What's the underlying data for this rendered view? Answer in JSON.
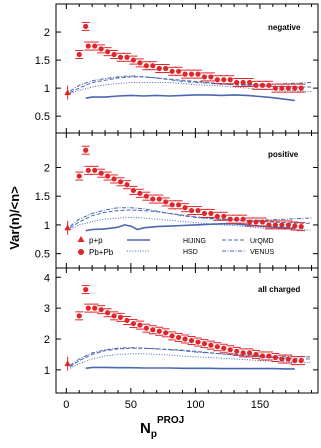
{
  "figure": {
    "ylabel": "Var(n)/<n>",
    "xlabel_main": "N",
    "xlabel_sub": "p",
    "xlabel_sup": "PROJ",
    "xticks": [
      0,
      50,
      100,
      150
    ],
    "colors": {
      "data": "#e0262a",
      "model": "#4a68b0",
      "frame": "#000000"
    }
  },
  "legend": {
    "pp": "p+p",
    "pbpb": "Pb+Pb",
    "hijing": "HIJING",
    "hsd": "HSD",
    "urqmd": "UrQMD",
    "venus": "VENUS"
  },
  "chart_data": [
    {
      "type": "scatter",
      "title": "negative",
      "xlim": [
        -8,
        195
      ],
      "ylim": [
        0.2,
        2.5
      ],
      "yticks": [
        0.5,
        1,
        1.5,
        2
      ],
      "series": [
        {
          "name": "p+p",
          "x": [
            1
          ],
          "y": [
            0.92
          ]
        },
        {
          "name": "Pb+Pb",
          "x": [
            10,
            15,
            17,
            22,
            27,
            32,
            37,
            42,
            47,
            52,
            57,
            62,
            67,
            72,
            77,
            82,
            87,
            92,
            97,
            102,
            107,
            112,
            117,
            122,
            127,
            132,
            137,
            142,
            147,
            152,
            157,
            162,
            167,
            172,
            177,
            182
          ],
          "y": [
            1.6,
            2.1,
            1.75,
            1.75,
            1.7,
            1.65,
            1.6,
            1.55,
            1.55,
            1.5,
            1.45,
            1.4,
            1.4,
            1.35,
            1.35,
            1.3,
            1.3,
            1.25,
            1.25,
            1.25,
            1.2,
            1.2,
            1.15,
            1.15,
            1.15,
            1.1,
            1.1,
            1.1,
            1.05,
            1.05,
            1.05,
            1.0,
            1.0,
            1.0,
            1.0,
            1.0
          ]
        },
        {
          "name": "HIJING",
          "x": [
            15,
            20,
            30,
            40,
            50,
            60,
            70,
            80,
            90,
            100,
            110,
            120,
            130,
            140,
            150,
            160,
            170,
            177
          ],
          "y": [
            0.82,
            0.84,
            0.84,
            0.86,
            0.87,
            0.86,
            0.87,
            0.86,
            0.87,
            0.88,
            0.88,
            0.87,
            0.88,
            0.87,
            0.85,
            0.83,
            0.8,
            0.78
          ]
        },
        {
          "name": "HSD",
          "x": [
            3,
            10,
            20,
            30,
            40,
            50,
            60,
            70,
            80,
            90,
            100,
            110,
            120,
            130,
            140,
            150,
            160,
            170,
            180,
            190
          ],
          "y": [
            0.9,
            0.96,
            1.02,
            1.06,
            1.08,
            1.1,
            1.1,
            1.1,
            1.1,
            1.08,
            1.06,
            1.05,
            1.04,
            1.02,
            1.0,
            0.98,
            0.97,
            0.96,
            0.95,
            0.94
          ]
        },
        {
          "name": "UrQMD",
          "x": [
            3,
            10,
            20,
            30,
            40,
            50,
            60,
            70,
            80,
            90,
            100,
            110,
            120,
            130,
            140,
            150,
            160,
            170,
            180,
            190
          ],
          "y": [
            0.92,
            1.0,
            1.1,
            1.14,
            1.18,
            1.2,
            1.2,
            1.18,
            1.16,
            1.14,
            1.12,
            1.1,
            1.08,
            1.06,
            1.05,
            1.04,
            1.03,
            1.03,
            1.02,
            1.02
          ]
        },
        {
          "name": "VENUS",
          "x": [
            3,
            10,
            20,
            30,
            40,
            50,
            60,
            70,
            80,
            90,
            100,
            110,
            120,
            130,
            140,
            150,
            160,
            170,
            180,
            190
          ],
          "y": [
            0.95,
            1.05,
            1.13,
            1.17,
            1.2,
            1.22,
            1.2,
            1.18,
            1.15,
            1.12,
            1.1,
            1.09,
            1.07,
            1.06,
            1.06,
            1.06,
            1.07,
            1.08,
            1.09,
            1.1
          ]
        }
      ]
    },
    {
      "type": "scatter",
      "title": "positive",
      "xlim": [
        -8,
        195
      ],
      "ylim": [
        0.25,
        2.6
      ],
      "yticks": [
        0.5,
        1,
        1.5,
        2
      ],
      "series": [
        {
          "name": "p+p",
          "x": [
            1
          ],
          "y": [
            0.95
          ]
        },
        {
          "name": "Pb+Pb",
          "x": [
            10,
            15,
            17,
            22,
            27,
            32,
            37,
            42,
            47,
            52,
            57,
            62,
            67,
            72,
            77,
            82,
            87,
            92,
            97,
            102,
            107,
            112,
            117,
            122,
            127,
            132,
            137,
            142,
            147,
            152,
            157,
            162,
            167,
            172,
            177,
            182
          ],
          "y": [
            1.85,
            2.3,
            1.95,
            1.95,
            1.9,
            1.85,
            1.8,
            1.75,
            1.7,
            1.6,
            1.55,
            1.5,
            1.45,
            1.45,
            1.4,
            1.35,
            1.35,
            1.3,
            1.25,
            1.25,
            1.2,
            1.2,
            1.15,
            1.15,
            1.1,
            1.1,
            1.1,
            1.05,
            1.05,
            1.05,
            1.0,
            1.0,
            1.0,
            1.0,
            0.98,
            0.97
          ]
        },
        {
          "name": "HIJING",
          "x": [
            15,
            20,
            30,
            40,
            45,
            50,
            55,
            60,
            70,
            80,
            90,
            100,
            110,
            120,
            130,
            140,
            150,
            160,
            170,
            177
          ],
          "y": [
            0.9,
            0.92,
            0.93,
            0.96,
            1.0,
            0.98,
            0.92,
            0.95,
            0.97,
            0.98,
            0.99,
            1.0,
            1.01,
            1.02,
            1.02,
            1.0,
            0.98,
            0.96,
            0.95,
            0.94
          ]
        },
        {
          "name": "HSD",
          "x": [
            3,
            10,
            20,
            30,
            40,
            50,
            60,
            70,
            80,
            90,
            100,
            110,
            120,
            130,
            140,
            150,
            160,
            170,
            180,
            190
          ],
          "y": [
            0.92,
            1.0,
            1.06,
            1.1,
            1.12,
            1.13,
            1.12,
            1.1,
            1.08,
            1.06,
            1.04,
            1.02,
            1.0,
            0.99,
            0.97,
            0.95,
            0.94,
            0.93,
            0.92,
            0.91
          ]
        },
        {
          "name": "UrQMD",
          "x": [
            3,
            10,
            20,
            30,
            40,
            50,
            60,
            70,
            80,
            90,
            100,
            110,
            120,
            130,
            140,
            150,
            160,
            170,
            180,
            190
          ],
          "y": [
            0.95,
            1.05,
            1.16,
            1.22,
            1.25,
            1.26,
            1.25,
            1.23,
            1.2,
            1.17,
            1.14,
            1.12,
            1.1,
            1.08,
            1.07,
            1.06,
            1.05,
            1.04,
            1.03,
            1.03
          ]
        },
        {
          "name": "VENUS",
          "x": [
            3,
            10,
            20,
            30,
            40,
            50,
            60,
            70,
            80,
            90,
            100,
            110,
            120,
            130,
            140,
            150,
            160,
            170,
            180,
            190
          ],
          "y": [
            0.98,
            1.1,
            1.2,
            1.26,
            1.3,
            1.3,
            1.28,
            1.24,
            1.2,
            1.16,
            1.13,
            1.11,
            1.1,
            1.09,
            1.08,
            1.08,
            1.09,
            1.1,
            1.11,
            1.12
          ]
        }
      ]
    },
    {
      "type": "scatter",
      "title": "all charged",
      "xlim": [
        -8,
        195
      ],
      "ylim": [
        0.25,
        4.3
      ],
      "yticks": [
        1,
        2,
        3,
        4
      ],
      "series": [
        {
          "name": "p+p",
          "x": [
            1
          ],
          "y": [
            1.2
          ]
        },
        {
          "name": "Pb+Pb",
          "x": [
            10,
            15,
            17,
            22,
            27,
            32,
            37,
            42,
            47,
            52,
            57,
            62,
            67,
            72,
            77,
            82,
            87,
            92,
            97,
            102,
            107,
            112,
            117,
            122,
            127,
            132,
            137,
            142,
            147,
            152,
            157,
            162,
            167,
            172,
            177,
            182
          ],
          "y": [
            2.75,
            3.6,
            3.0,
            3.0,
            2.95,
            2.85,
            2.75,
            2.7,
            2.6,
            2.5,
            2.45,
            2.35,
            2.3,
            2.25,
            2.2,
            2.1,
            2.05,
            2.0,
            1.95,
            1.9,
            1.85,
            1.8,
            1.75,
            1.7,
            1.65,
            1.6,
            1.55,
            1.55,
            1.5,
            1.45,
            1.45,
            1.4,
            1.35,
            1.35,
            1.3,
            1.3
          ]
        },
        {
          "name": "HIJING",
          "x": [
            15,
            20,
            30,
            40,
            50,
            60,
            70,
            80,
            90,
            100,
            110,
            120,
            130,
            140,
            150,
            160,
            170,
            177
          ],
          "y": [
            1.05,
            1.08,
            1.08,
            1.07,
            1.07,
            1.06,
            1.06,
            1.06,
            1.05,
            1.05,
            1.05,
            1.04,
            1.04,
            1.04,
            1.04,
            1.04,
            1.03,
            1.03
          ]
        },
        {
          "name": "HSD",
          "x": [
            3,
            10,
            20,
            30,
            40,
            50,
            60,
            70,
            80,
            90,
            100,
            110,
            120,
            130,
            140,
            150,
            160,
            170,
            180,
            190
          ],
          "y": [
            1.05,
            1.2,
            1.35,
            1.45,
            1.5,
            1.52,
            1.52,
            1.5,
            1.48,
            1.45,
            1.42,
            1.4,
            1.38,
            1.35,
            1.33,
            1.3,
            1.28,
            1.26,
            1.25,
            1.24
          ]
        },
        {
          "name": "UrQMD",
          "x": [
            3,
            10,
            20,
            30,
            40,
            50,
            60,
            70,
            80,
            90,
            100,
            110,
            120,
            130,
            140,
            150,
            160,
            170,
            180,
            190
          ],
          "y": [
            1.1,
            1.3,
            1.5,
            1.62,
            1.68,
            1.7,
            1.7,
            1.68,
            1.66,
            1.64,
            1.6,
            1.56,
            1.52,
            1.48,
            1.45,
            1.42,
            1.4,
            1.38,
            1.36,
            1.35
          ]
        },
        {
          "name": "VENUS",
          "x": [
            3,
            10,
            20,
            30,
            40,
            50,
            60,
            70,
            80,
            90,
            100,
            110,
            120,
            130,
            140,
            150,
            160,
            170,
            180,
            190
          ],
          "y": [
            1.15,
            1.35,
            1.55,
            1.65,
            1.7,
            1.72,
            1.7,
            1.68,
            1.65,
            1.62,
            1.58,
            1.55,
            1.52,
            1.5,
            1.48,
            1.46,
            1.45,
            1.44,
            1.43,
            1.42
          ]
        }
      ]
    }
  ]
}
